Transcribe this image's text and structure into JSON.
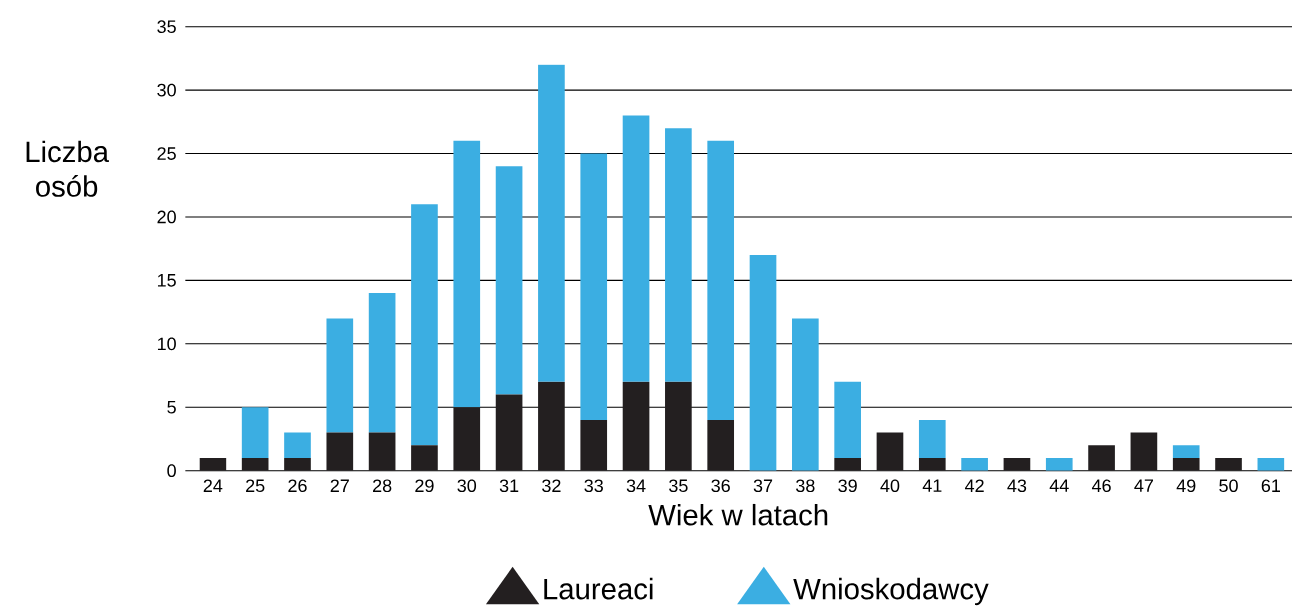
{
  "chart_data": {
    "type": "bar",
    "stacked": true,
    "xlabel": "Wiek w latach",
    "ylabel": "Liczba osób",
    "categories": [
      "24",
      "25",
      "26",
      "27",
      "28",
      "29",
      "30",
      "31",
      "32",
      "33",
      "34",
      "35",
      "36",
      "37",
      "38",
      "39",
      "40",
      "41",
      "42",
      "43",
      "44",
      "46",
      "47",
      "49",
      "50",
      "61"
    ],
    "series": [
      {
        "name": "Laureaci",
        "color": "#231f20",
        "values": [
          1,
          1,
          1,
          3,
          3,
          2,
          5,
          6,
          7,
          4,
          7,
          7,
          4,
          0,
          0,
          1,
          3,
          1,
          0,
          1,
          0,
          2,
          3,
          1,
          1,
          0
        ]
      },
      {
        "name": "Wnioskodawcy",
        "color": "#3baee2",
        "values": [
          0,
          4,
          2,
          9,
          11,
          19,
          21,
          18,
          25,
          21,
          21,
          20,
          22,
          17,
          12,
          6,
          0,
          3,
          1,
          0,
          1,
          0,
          0,
          1,
          0,
          1
        ]
      }
    ],
    "ylim": [
      0,
      35
    ],
    "yticks": [
      0,
      5,
      10,
      15,
      20,
      25,
      30,
      35
    ],
    "grid": "y",
    "legend": "bottom"
  }
}
